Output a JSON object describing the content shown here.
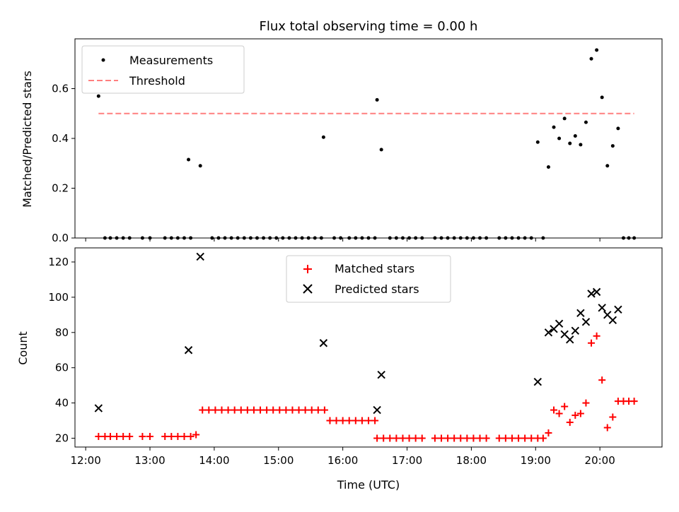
{
  "chart_data": [
    {
      "type": "scatter",
      "title": "Flux total observing time = 0.00 h",
      "ylabel": "Matched/Predicted stars",
      "xlabel": "",
      "xlim": [
        "12:00",
        "21:00"
      ],
      "ylim": [
        0,
        0.8
      ],
      "yticks": [
        "0.0",
        "0.2",
        "0.4",
        "0.6"
      ],
      "legend_position": "upper-left",
      "series": [
        {
          "name": "Measurements",
          "marker": "dot",
          "color": "#000000",
          "points": [
            [
              "12:12",
              0.57
            ],
            [
              "12:18",
              0
            ],
            [
              "12:23",
              0
            ],
            [
              "12:29",
              0
            ],
            [
              "12:35",
              0
            ],
            [
              "12:41",
              0
            ],
            [
              "12:53",
              0
            ],
            [
              "13:00",
              0
            ],
            [
              "13:14",
              0
            ],
            [
              "13:20",
              0
            ],
            [
              "13:26",
              0
            ],
            [
              "13:32",
              0
            ],
            [
              "13:38",
              0
            ],
            [
              "13:36",
              0.315
            ],
            [
              "13:47",
              0.29
            ],
            [
              "13:58",
              0
            ],
            [
              "14:04",
              0
            ],
            [
              "14:10",
              0
            ],
            [
              "14:16",
              0
            ],
            [
              "14:22",
              0
            ],
            [
              "14:28",
              0
            ],
            [
              "14:34",
              0
            ],
            [
              "14:40",
              0
            ],
            [
              "14:46",
              0
            ],
            [
              "14:52",
              0
            ],
            [
              "14:58",
              0
            ],
            [
              "15:04",
              0
            ],
            [
              "15:10",
              0
            ],
            [
              "15:16",
              0
            ],
            [
              "15:22",
              0
            ],
            [
              "15:28",
              0
            ],
            [
              "15:34",
              0
            ],
            [
              "15:40",
              0
            ],
            [
              "15:42",
              0.405
            ],
            [
              "15:52",
              0
            ],
            [
              "15:58",
              0
            ],
            [
              "16:06",
              0
            ],
            [
              "16:12",
              0
            ],
            [
              "16:18",
              0
            ],
            [
              "16:24",
              0
            ],
            [
              "16:30",
              0
            ],
            [
              "16:32",
              0.555
            ],
            [
              "16:36",
              0.355
            ],
            [
              "16:44",
              0
            ],
            [
              "16:50",
              0
            ],
            [
              "16:56",
              0
            ],
            [
              "17:02",
              0
            ],
            [
              "17:08",
              0
            ],
            [
              "17:14",
              0
            ],
            [
              "17:26",
              0
            ],
            [
              "17:32",
              0
            ],
            [
              "17:38",
              0
            ],
            [
              "17:44",
              0
            ],
            [
              "17:50",
              0
            ],
            [
              "17:56",
              0
            ],
            [
              "18:02",
              0
            ],
            [
              "18:08",
              0
            ],
            [
              "18:14",
              0
            ],
            [
              "18:26",
              0
            ],
            [
              "18:32",
              0
            ],
            [
              "18:38",
              0
            ],
            [
              "18:44",
              0
            ],
            [
              "18:50",
              0
            ],
            [
              "18:56",
              0
            ],
            [
              "19:02",
              0.385
            ],
            [
              "19:07",
              0
            ],
            [
              "19:12",
              0.285
            ],
            [
              "19:17",
              0.445
            ],
            [
              "19:22",
              0.4
            ],
            [
              "19:27",
              0.48
            ],
            [
              "19:32",
              0.38
            ],
            [
              "19:37",
              0.41
            ],
            [
              "19:42",
              0.375
            ],
            [
              "19:47",
              0.465
            ],
            [
              "19:52",
              0.72
            ],
            [
              "19:57",
              0.755
            ],
            [
              "20:02",
              0.565
            ],
            [
              "20:07",
              0.29
            ],
            [
              "20:12",
              0.37
            ],
            [
              "20:17",
              0.44
            ],
            [
              "20:22",
              0
            ],
            [
              "20:27",
              0
            ],
            [
              "20:32",
              0
            ]
          ]
        },
        {
          "name": "Threshold",
          "marker": "dashed-line",
          "color": "#ff7f7f",
          "points": [
            [
              "12:12",
              0.5
            ],
            [
              "20:32",
              0.5
            ]
          ]
        }
      ]
    },
    {
      "type": "scatter",
      "title": "",
      "ylabel": "Count",
      "xlabel": "Time (UTC)",
      "xlim": [
        "12:00",
        "21:00"
      ],
      "ylim": [
        15,
        128
      ],
      "yticks": [
        "20",
        "40",
        "60",
        "80",
        "100",
        "120"
      ],
      "xticks": [
        "12:00",
        "13:00",
        "14:00",
        "15:00",
        "16:00",
        "17:00",
        "18:00",
        "19:00",
        "20:00"
      ],
      "legend_position": "upper-center",
      "series": [
        {
          "name": "Matched stars",
          "marker": "plus",
          "color": "#ff0000",
          "points": [
            [
              "12:12",
              21
            ],
            [
              "12:18",
              21
            ],
            [
              "12:23",
              21
            ],
            [
              "12:29",
              21
            ],
            [
              "12:35",
              21
            ],
            [
              "12:41",
              21
            ],
            [
              "12:53",
              21
            ],
            [
              "13:00",
              21
            ],
            [
              "13:14",
              21
            ],
            [
              "13:20",
              21
            ],
            [
              "13:26",
              21
            ],
            [
              "13:32",
              21
            ],
            [
              "13:38",
              21
            ],
            [
              "13:43",
              22
            ],
            [
              "13:49",
              36
            ],
            [
              "13:55",
              36
            ],
            [
              "14:01",
              36
            ],
            [
              "14:07",
              36
            ],
            [
              "14:13",
              36
            ],
            [
              "14:19",
              36
            ],
            [
              "14:25",
              36
            ],
            [
              "14:31",
              36
            ],
            [
              "14:37",
              36
            ],
            [
              "14:43",
              36
            ],
            [
              "14:49",
              36
            ],
            [
              "14:55",
              36
            ],
            [
              "15:01",
              36
            ],
            [
              "15:07",
              36
            ],
            [
              "15:13",
              36
            ],
            [
              "15:19",
              36
            ],
            [
              "15:25",
              36
            ],
            [
              "15:31",
              36
            ],
            [
              "15:37",
              36
            ],
            [
              "15:43",
              36
            ],
            [
              "15:48",
              30
            ],
            [
              "15:54",
              30
            ],
            [
              "16:00",
              30
            ],
            [
              "16:06",
              30
            ],
            [
              "16:12",
              30
            ],
            [
              "16:18",
              30
            ],
            [
              "16:24",
              30
            ],
            [
              "16:30",
              30
            ],
            [
              "16:32",
              20
            ],
            [
              "16:38",
              20
            ],
            [
              "16:44",
              20
            ],
            [
              "16:50",
              20
            ],
            [
              "16:56",
              20
            ],
            [
              "17:02",
              20
            ],
            [
              "17:08",
              20
            ],
            [
              "17:14",
              20
            ],
            [
              "17:26",
              20
            ],
            [
              "17:32",
              20
            ],
            [
              "17:38",
              20
            ],
            [
              "17:44",
              20
            ],
            [
              "17:50",
              20
            ],
            [
              "17:56",
              20
            ],
            [
              "18:02",
              20
            ],
            [
              "18:08",
              20
            ],
            [
              "18:14",
              20
            ],
            [
              "18:26",
              20
            ],
            [
              "18:32",
              20
            ],
            [
              "18:38",
              20
            ],
            [
              "18:44",
              20
            ],
            [
              "18:50",
              20
            ],
            [
              "18:56",
              20
            ],
            [
              "19:02",
              20
            ],
            [
              "19:07",
              20
            ],
            [
              "19:12",
              23
            ],
            [
              "19:17",
              36
            ],
            [
              "19:22",
              34
            ],
            [
              "19:27",
              38
            ],
            [
              "19:32",
              29
            ],
            [
              "19:37",
              33
            ],
            [
              "19:42",
              34
            ],
            [
              "19:47",
              40
            ],
            [
              "19:52",
              74
            ],
            [
              "19:57",
              78
            ],
            [
              "20:02",
              53
            ],
            [
              "20:07",
              26
            ],
            [
              "20:12",
              32
            ],
            [
              "20:17",
              41
            ],
            [
              "20:22",
              41
            ],
            [
              "20:27",
              41
            ],
            [
              "20:32",
              41
            ]
          ]
        },
        {
          "name": "Predicted stars",
          "marker": "x",
          "color": "#000000",
          "points": [
            [
              "12:12",
              37
            ],
            [
              "13:36",
              70
            ],
            [
              "13:47",
              123
            ],
            [
              "15:42",
              74
            ],
            [
              "16:32",
              36
            ],
            [
              "16:36",
              56
            ],
            [
              "19:02",
              52
            ],
            [
              "19:12",
              80
            ],
            [
              "19:17",
              82
            ],
            [
              "19:22",
              85
            ],
            [
              "19:27",
              79
            ],
            [
              "19:32",
              76
            ],
            [
              "19:37",
              81
            ],
            [
              "19:42",
              91
            ],
            [
              "19:47",
              86
            ],
            [
              "19:52",
              102
            ],
            [
              "19:57",
              103
            ],
            [
              "20:02",
              94
            ],
            [
              "20:07",
              90
            ],
            [
              "20:12",
              87
            ],
            [
              "20:17",
              93
            ]
          ]
        }
      ]
    }
  ]
}
